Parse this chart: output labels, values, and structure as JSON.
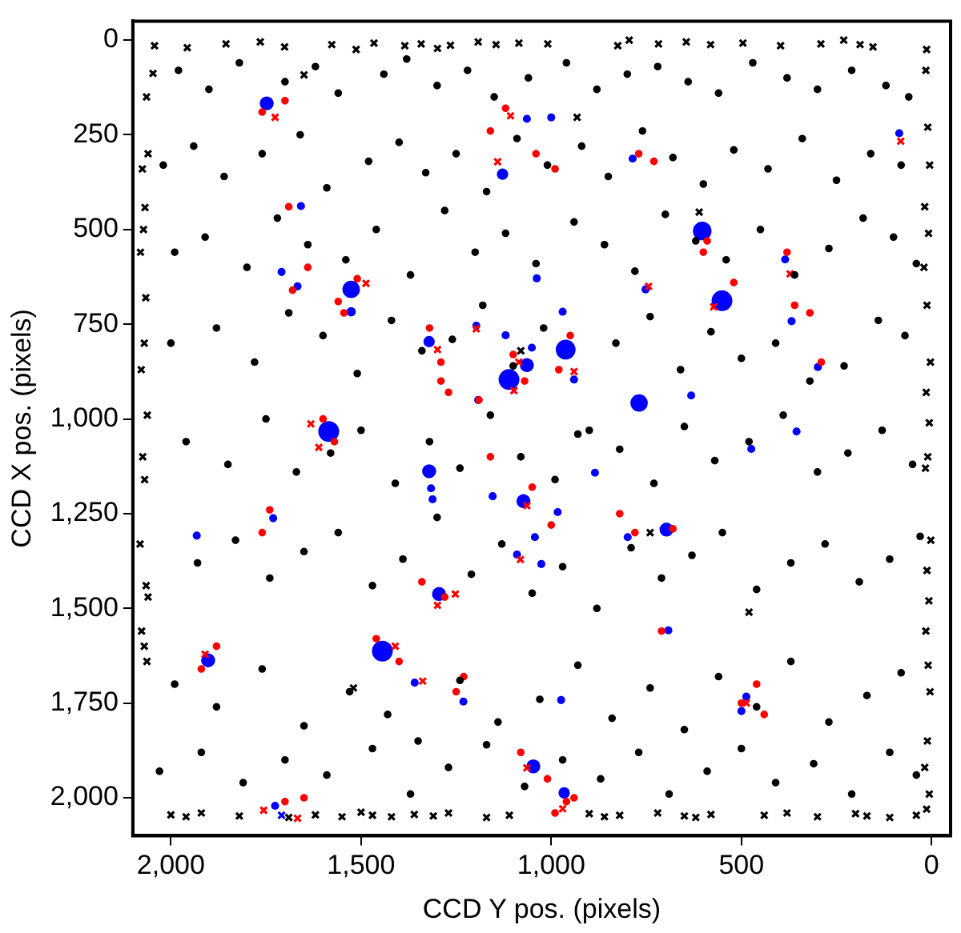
{
  "chart_data": {
    "type": "scatter",
    "xlabel": "CCD Y pos. (pixels)",
    "ylabel": "CCD X pos. (pixels)",
    "xlim": [
      2100,
      -50
    ],
    "ylim": [
      2100,
      -50
    ],
    "xticks": [
      {
        "value": 2000,
        "label": "2,000"
      },
      {
        "value": 1500,
        "label": "1,500"
      },
      {
        "value": 1000,
        "label": "1,000"
      },
      500,
      0
    ],
    "yticks": [
      0,
      250,
      500,
      750,
      {
        "value": 1000,
        "label": "1,000"
      },
      {
        "value": 1250,
        "label": "1,250"
      },
      {
        "value": 1500,
        "label": "1,500"
      },
      {
        "value": 1750,
        "label": "1,750"
      },
      {
        "value": 2000,
        "label": "2,000"
      }
    ],
    "grid": false,
    "legend": false,
    "series": [
      {
        "marker": "circle",
        "color": "#000000",
        "x": [
          1980,
          1900,
          1820,
          1700,
          1620,
          1560,
          1440,
          1380,
          1300,
          1220,
          1150,
          1060,
          960,
          880,
          800,
          720,
          640,
          560,
          470,
          380,
          300,
          210,
          120,
          60,
          2020,
          1940,
          1860,
          1760,
          1660,
          1590,
          1480,
          1400,
          1330,
          1250,
          1170,
          1090,
          1010,
          920,
          850,
          760,
          680,
          600,
          520,
          430,
          340,
          250,
          160,
          80,
          1990,
          1910,
          1800,
          1720,
          1640,
          1540,
          1460,
          1370,
          1280,
          1200,
          1120,
          1040,
          940,
          860,
          780,
          700,
          620,
          540,
          450,
          360,
          270,
          180,
          100,
          40,
          2000,
          1880,
          1780,
          1690,
          1600,
          1510,
          1420,
          1340,
          1260,
          1180,
          1100,
          1020,
          930,
          830,
          740,
          660,
          580,
          500,
          410,
          320,
          230,
          140,
          70,
          1960,
          1850,
          1750,
          1670,
          1580,
          1500,
          1410,
          1320,
          1240,
          1160,
          1080,
          990,
          900,
          820,
          730,
          650,
          570,
          480,
          390,
          300,
          220,
          130,
          50,
          1930,
          1830,
          1740,
          1650,
          1560,
          1470,
          1390,
          1300,
          1210,
          1130,
          1050,
          970,
          880,
          790,
          710,
          630,
          550,
          460,
          370,
          280,
          190,
          110,
          30
        ],
        "values": [
          80,
          130,
          60,
          110,
          70,
          140,
          90,
          50,
          120,
          80,
          150,
          100,
          60,
          130,
          90,
          70,
          110,
          140,
          60,
          100,
          130,
          80,
          120,
          150,
          330,
          280,
          360,
          300,
          250,
          390,
          320,
          270,
          350,
          300,
          400,
          260,
          330,
          280,
          360,
          240,
          310,
          380,
          290,
          340,
          260,
          370,
          300,
          330,
          560,
          520,
          600,
          470,
          540,
          580,
          500,
          620,
          450,
          560,
          510,
          590,
          480,
          540,
          610,
          460,
          530,
          580,
          500,
          620,
          550,
          470,
          520,
          590,
          800,
          760,
          850,
          720,
          780,
          880,
          740,
          820,
          790,
          700,
          860,
          760,
          1040,
          800,
          730,
          870,
          770,
          840,
          800,
          900,
          860,
          740,
          780,
          1060,
          1120,
          1000,
          1140,
          1090,
          1030,
          1170,
          1060,
          1130,
          990,
          1100,
          1160,
          1030,
          1080,
          1170,
          1020,
          1110,
          1060,
          990,
          1140,
          1090,
          1030,
          1120,
          1380,
          1320,
          1420,
          1350,
          1300,
          1440,
          1370,
          1260,
          1410,
          1330,
          1460,
          1390,
          1500,
          1340,
          1420,
          1360,
          1300,
          1450,
          1380,
          1330,
          1430,
          1370,
          1310
        ]
      },
      {
        "marker": "circle",
        "color": "#000000",
        "x": [
          1990,
          1880,
          1760,
          1650,
          1530,
          1430,
          1350,
          1240,
          1140,
          1030,
          930,
          840,
          740,
          650,
          560,
          460,
          370,
          270,
          170,
          80,
          2030,
          1920,
          1810,
          1700,
          1590,
          1470,
          1370,
          1270,
          1170,
          1070,
          970,
          870,
          770,
          690,
          590,
          500,
          410,
          310,
          210,
          110,
          40
        ],
        "values": [
          1700,
          1760,
          1660,
          1810,
          1720,
          1780,
          1850,
          1690,
          1800,
          1740,
          1650,
          1790,
          1710,
          1820,
          1680,
          1760,
          1640,
          1800,
          1730,
          1670,
          1930,
          1880,
          1960,
          1900,
          1940,
          1870,
          1990,
          1920,
          1860,
          1970,
          1900,
          1950,
          1880,
          1990,
          1930,
          1870,
          1960,
          1910,
          1990,
          1880,
          1940
        ]
      },
      {
        "marker": "cross",
        "color": "#000000",
        "x": [
          2043,
          1957,
          1855,
          1765,
          1701,
          1577,
          1513,
          1466,
          1385,
          1342,
          1299,
          1265,
          1192,
          1145,
          1085,
          1009,
          825,
          795,
          718,
          645,
          581,
          496,
          397,
          291,
          231,
          188,
          154,
          13
        ],
        "values": [
          15,
          20,
          10,
          5,
          18,
          12,
          25,
          8,
          15,
          10,
          22,
          14,
          5,
          12,
          8,
          10,
          15,
          0,
          10,
          5,
          12,
          8,
          15,
          10,
          0,
          12,
          18,
          25
        ]
      },
      {
        "marker": "cross",
        "color": "#000000",
        "x": [
          2047,
          2064,
          2060,
          2075,
          2068,
          2072,
          2080,
          2066,
          2070,
          2078,
          2062,
          2074,
          2069,
          2081,
          2065,
          2060,
          2077,
          2070,
          2063,
          15,
          10,
          5,
          18,
          8,
          20,
          12,
          3,
          14,
          6,
          10,
          16,
          2,
          12,
          7,
          15,
          9,
          4,
          11,
          18,
          6,
          13
        ],
        "values": [
          88,
          150,
          300,
          340,
          442,
          500,
          560,
          680,
          800,
          870,
          990,
          1100,
          1160,
          1330,
          1440,
          1470,
          1560,
          1600,
          1640,
          80,
          230,
          330,
          440,
          510,
          600,
          700,
          850,
          930,
          1010,
          1100,
          1130,
          1320,
          1400,
          1480,
          1560,
          1650,
          1720,
          1850,
          1920,
          1990,
          2030
        ]
      },
      {
        "marker": "cross",
        "color": "#000000",
        "x": [
          2000,
          1960,
          1920,
          1820,
          1690,
          1620,
          1550,
          1500,
          1470,
          1420,
          1360,
          1310,
          1270,
          1170,
          1110,
          900,
          860,
          820,
          720,
          650,
          620,
          580,
          440,
          380,
          300,
          200,
          170,
          110,
          40,
          1650,
          611,
          932,
          1520,
          740,
          480,
          1080
        ],
        "values": [
          2045,
          2050,
          2040,
          2048,
          2052,
          2045,
          2050,
          2038,
          2046,
          2050,
          2044,
          2048,
          2040,
          2052,
          2046,
          2042,
          2050,
          2046,
          2040,
          2048,
          2052,
          2044,
          2046,
          2040,
          2050,
          2042,
          2048,
          2052,
          2046,
          92,
          454,
          204,
          1710,
          1300,
          1510,
          820
        ]
      },
      {
        "marker": "circle",
        "color": "#ff0000",
        "x": [
          1760,
          1700,
          1510,
          1560,
          1545,
          1640,
          1680,
          1690,
          1320,
          1290,
          1600,
          1570,
          1120,
          1160,
          1040,
          990,
          770,
          730,
          600,
          590,
          520,
          380,
          360,
          320,
          290,
          1100,
          1070,
          950,
          980,
          1190,
          1160,
          1050,
          1000,
          820,
          780,
          680,
          710,
          500,
          460,
          440,
          1080,
          1010,
          940,
          1880,
          1920,
          1740,
          1760,
          1460,
          1400,
          1280,
          1340,
          1250,
          1230,
          1700,
          1650,
          990,
          960,
          1290,
          1270
        ],
        "values": [
          190,
          160,
          630,
          690,
          720,
          600,
          660,
          440,
          760,
          850,
          1000,
          1060,
          180,
          240,
          300,
          340,
          300,
          320,
          560,
          530,
          640,
          560,
          700,
          720,
          850,
          830,
          900,
          780,
          870,
          950,
          1100,
          1180,
          1280,
          1250,
          1300,
          1290,
          1560,
          1750,
          1700,
          1780,
          1880,
          1950,
          2000,
          1600,
          1660,
          1240,
          1300,
          1580,
          1640,
          1470,
          1430,
          1720,
          1680,
          2010,
          2000,
          2040,
          2010,
          900,
          930
        ]
      },
      {
        "marker": "cross",
        "color": "#ff0000",
        "x": [
          1726,
          1487,
          1299,
          1632,
          1611,
          1107,
          1141,
          744,
          573,
          81,
          372,
          1085,
          940,
          1098,
          1197,
          1064,
          1081,
          487,
          1064,
          970,
          1910,
          1410,
          1299,
          1252,
          1338,
          1756,
          1667
        ],
        "values": [
          204,
          642,
          817,
          1013,
          1075,
          200,
          321,
          650,
          704,
          267,
          617,
          850,
          875,
          925,
          762,
          1229,
          1371,
          1750,
          1921,
          2029,
          1621,
          1600,
          1492,
          1462,
          1692,
          2033,
          2054
        ]
      },
      {
        "marker": "cross",
        "color": "#0000ff",
        "x": [
          1709
        ],
        "values": [
          2046
        ]
      },
      {
        "type": "bubble",
        "marker": "circle",
        "color": "#0000ff",
        "x": [
          1748,
          1526,
          1526,
          1658,
          1709,
          1667,
          1585,
          1321,
          1321,
          1064,
          1000,
          1128,
          786,
          603,
          551,
          752,
          385,
          368,
          299,
          85,
          1038,
          970,
          1197,
          1120,
          962,
          1051,
          1064,
          1111,
          940,
          1192,
          769,
          632,
          355,
          474,
          885,
          1154,
          1073,
          983,
          1043,
          697,
          799,
          1090,
          1026,
          692,
          974,
          487,
          500,
          1047,
          966,
          1932,
          1731,
          1902,
          1444,
          1295,
          1316,
          1312,
          1359,
          1231,
          1726
        ],
        "values": [
          167,
          658,
          717,
          438,
          612,
          650,
          1033,
          796,
          1138,
          208,
          204,
          354,
          313,
          504,
          688,
          658,
          579,
          742,
          863,
          246,
          629,
          717,
          754,
          779,
          817,
          812,
          858,
          896,
          896,
          950,
          958,
          938,
          1033,
          1079,
          1142,
          1204,
          1217,
          1246,
          1312,
          1292,
          1312,
          1358,
          1383,
          1558,
          1742,
          1733,
          1771,
          1917,
          1987,
          1308,
          1262,
          1637,
          1613,
          1462,
          1183,
          1212,
          1696,
          1746,
          2021
        ],
        "sizes": [
          0.45,
          0.7,
          0.2,
          0.15,
          0.15,
          0.15,
          1,
          0.3,
          0.45,
          0.15,
          0.15,
          0.3,
          0.15,
          0.8,
          1,
          0.15,
          0.15,
          0.15,
          0.15,
          0.15,
          0.15,
          0.15,
          0.15,
          0.15,
          0.9,
          0.15,
          0.45,
          1,
          0.15,
          0.15,
          0.7,
          0.15,
          0.15,
          0.15,
          0.15,
          0.15,
          0.45,
          0.15,
          0.15,
          0.45,
          0.15,
          0.15,
          0.15,
          0.15,
          0.15,
          0.15,
          0.15,
          0.45,
          0.3,
          0.15,
          0.15,
          0.45,
          1,
          0.45,
          0.15,
          0.15,
          0.15,
          0.15,
          0.15
        ]
      }
    ]
  }
}
